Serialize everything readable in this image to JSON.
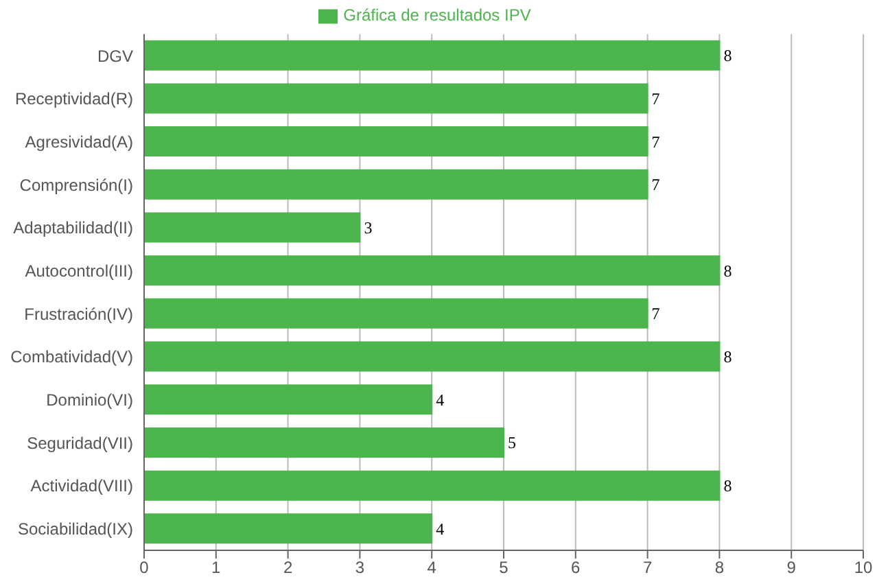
{
  "chart_data": {
    "type": "bar",
    "orientation": "horizontal",
    "categories": [
      "DGV",
      "Receptividad(R)",
      "Agresividad(A)",
      "Comprensión(I)",
      "Adaptabilidad(II)",
      "Autocontrol(III)",
      "Frustración(IV)",
      "Combatividad(V)",
      "Dominio(VI)",
      "Seguridad(VII)",
      "Actividad(VIII)",
      "Sociabilidad(IX)"
    ],
    "series": [
      {
        "name": "Gráfica de resultados IPV",
        "color": "#4db54d",
        "values": [
          8,
          7,
          7,
          7,
          3,
          8,
          7,
          8,
          4,
          5,
          8,
          4
        ]
      }
    ],
    "xlim": [
      0,
      10
    ],
    "xticks": [
      0,
      1,
      2,
      3,
      4,
      5,
      6,
      7,
      8,
      9,
      10
    ],
    "grid": true,
    "legend": "top",
    "data_labels": true
  }
}
